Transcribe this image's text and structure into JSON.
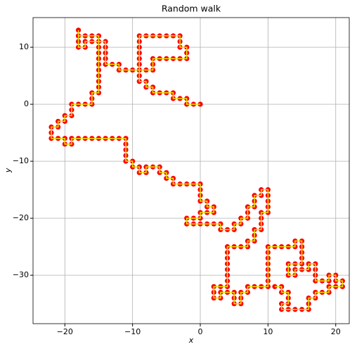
{
  "chart_data": {
    "type": "line",
    "title": "Random walk",
    "xlabel": "x",
    "ylabel": "y",
    "x": [
      0,
      -1,
      -2,
      -2,
      -3,
      -4,
      -4,
      -5,
      -6,
      -7,
      -7,
      -8,
      -8,
      -9,
      -9,
      -9,
      -9,
      -9,
      -9,
      -9,
      -9,
      -9,
      -8,
      -7,
      -6,
      -5,
      -4,
      -3,
      -3,
      -3,
      -2,
      -2,
      -2,
      -3,
      -4,
      -5,
      -6,
      -7,
      -7,
      -7,
      -8,
      -9,
      -10,
      -11,
      -12,
      -12,
      -13,
      -14,
      -14,
      -14,
      -14,
      -14,
      -15,
      -16,
      -17,
      -17,
      -18,
      -18,
      -18,
      -18,
      -18,
      -17,
      -16,
      -15,
      -15,
      -15,
      -15,
      -15,
      -15,
      -15,
      -15,
      -15,
      -15,
      -15,
      -16,
      -16,
      -16,
      -17,
      -18,
      -19,
      -19,
      -19,
      -20,
      -20,
      -21,
      -21,
      -22,
      -22,
      -22,
      -21,
      -20,
      -20,
      -19,
      -19,
      -18,
      -17,
      -16,
      -15,
      -14,
      -13,
      -12,
      -11,
      -11,
      -11,
      -11,
      -11,
      -10,
      -10,
      -9,
      -9,
      -8,
      -8,
      -7,
      -6,
      -6,
      -5,
      -5,
      -4,
      -4,
      -3,
      -2,
      -1,
      0,
      0,
      0,
      0,
      1,
      1,
      2,
      2,
      1,
      0,
      0,
      -1,
      -2,
      -2,
      -1,
      0,
      1,
      2,
      3,
      3,
      4,
      5,
      5,
      6,
      6,
      7,
      7,
      7,
      8,
      8,
      8,
      9,
      9,
      10,
      10,
      10,
      10,
      10,
      9,
      9,
      9,
      9,
      8,
      8,
      8,
      7,
      7,
      6,
      5,
      4,
      4,
      4,
      4,
      4,
      4,
      4,
      4,
      3,
      2,
      2,
      2,
      3,
      3,
      4,
      5,
      5,
      5,
      6,
      6,
      6,
      7,
      7,
      8,
      9,
      10,
      10,
      10,
      10,
      10,
      10,
      10,
      10,
      11,
      12,
      13,
      14,
      14,
      15,
      15,
      15,
      15,
      15,
      14,
      13,
      13,
      13,
      14,
      14,
      15,
      16,
      16,
      17,
      17,
      17,
      17,
      18,
      19,
      19,
      20,
      20,
      21,
      21,
      20,
      19,
      19,
      18,
      17,
      17,
      16,
      16,
      16,
      15,
      14,
      13,
      12,
      12,
      13,
      13,
      13,
      12,
      12,
      11
    ],
    "values": [
      0,
      0,
      0,
      1,
      1,
      1,
      2,
      2,
      2,
      2,
      3,
      3,
      4,
      4,
      5,
      6,
      7,
      8,
      9,
      10,
      11,
      12,
      12,
      12,
      12,
      12,
      12,
      12,
      11,
      10,
      10,
      9,
      8,
      8,
      8,
      8,
      8,
      8,
      7,
      6,
      6,
      6,
      6,
      6,
      6,
      7,
      7,
      7,
      8,
      9,
      10,
      11,
      11,
      11,
      11,
      10,
      10,
      11,
      12,
      13,
      12,
      12,
      12,
      12,
      11,
      10,
      9,
      8,
      7,
      6,
      5,
      4,
      3,
      2,
      2,
      1,
      0,
      0,
      0,
      0,
      -1,
      -2,
      -2,
      -3,
      -3,
      -4,
      -4,
      -5,
      -6,
      -6,
      -6,
      -7,
      -7,
      -6,
      -6,
      -6,
      -6,
      -6,
      -6,
      -6,
      -6,
      -6,
      -7,
      -8,
      -9,
      -10,
      -10,
      -11,
      -11,
      -12,
      -12,
      -11,
      -11,
      -11,
      -12,
      -12,
      -13,
      -13,
      -14,
      -14,
      -14,
      -14,
      -14,
      -15,
      -16,
      -17,
      -17,
      -18,
      -18,
      -19,
      -19,
      -19,
      -20,
      -20,
      -20,
      -21,
      -21,
      -21,
      -21,
      -21,
      -21,
      -22,
      -22,
      -22,
      -21,
      -21,
      -20,
      -20,
      -19,
      -18,
      -18,
      -17,
      -16,
      -16,
      -15,
      -15,
      -16,
      -17,
      -18,
      -19,
      -19,
      -20,
      -21,
      -22,
      -22,
      -23,
      -24,
      -24,
      -25,
      -25,
      -25,
      -25,
      -26,
      -27,
      -28,
      -29,
      -30,
      -31,
      -32,
      -32,
      -32,
      -33,
      -34,
      -34,
      -33,
      -33,
      -33,
      -34,
      -35,
      -35,
      -34,
      -33,
      -33,
      -32,
      -32,
      -32,
      -32,
      -31,
      -30,
      -29,
      -28,
      -27,
      -26,
      -25,
      -25,
      -25,
      -25,
      -25,
      -24,
      -24,
      -25,
      -26,
      -27,
      -28,
      -28,
      -28,
      -29,
      -30,
      -30,
      -29,
      -29,
      -29,
      -28,
      -28,
      -29,
      -30,
      -31,
      -31,
      -31,
      -30,
      -30,
      -31,
      -31,
      -32,
      -32,
      -32,
      -33,
      -33,
      -33,
      -34,
      -34,
      -35,
      -36,
      -36,
      -36,
      -36,
      -36,
      -35,
      -35,
      -34,
      -33,
      -33,
      -32,
      -32
    ],
    "line_color": "#e6e600",
    "marker_color": "#ff0000",
    "xlim": [
      -24.7,
      22.0
    ],
    "ylim": [
      -38.5,
      15.2
    ],
    "xticks": [
      {
        "value": -20,
        "label": "−20"
      },
      {
        "value": -10,
        "label": "−10"
      },
      0,
      10,
      20
    ],
    "yticks": [
      {
        "value": -30,
        "label": "−30"
      },
      {
        "value": -20,
        "label": "−20"
      },
      {
        "value": -10,
        "label": "−10"
      },
      0,
      10
    ],
    "grid": true
  }
}
